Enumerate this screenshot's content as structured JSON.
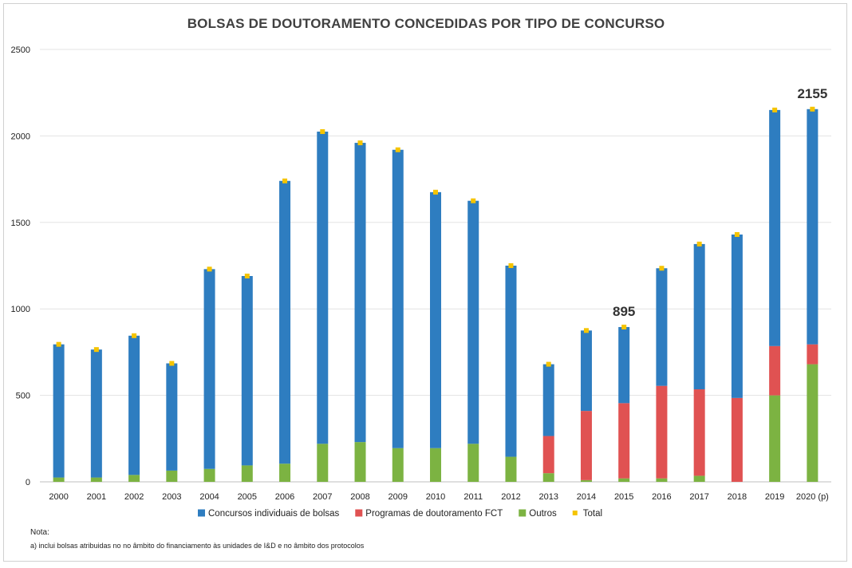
{
  "chart_data": {
    "type": "bar",
    "stacked": true,
    "title": "BOLSAS DE DOUTORAMENTO CONCEDIDAS POR TIPO DE CONCURSO",
    "xlabel": "",
    "ylabel": "",
    "ylim": [
      0,
      2500
    ],
    "yticks": [
      0,
      500,
      1000,
      1500,
      2000,
      2500
    ],
    "grid": true,
    "legend_position": "bottom",
    "categories": [
      "2000",
      "2001",
      "2002",
      "2003",
      "2004",
      "2005",
      "2006",
      "2007",
      "2008",
      "2009",
      "2010",
      "2011",
      "2012",
      "2013",
      "2014",
      "2015",
      "2016",
      "2017",
      "2018",
      "2019",
      "2020 (p)"
    ],
    "series": [
      {
        "name": "Outros",
        "color": "#7cb342",
        "values": [
          25,
          25,
          40,
          65,
          75,
          95,
          105,
          220,
          230,
          195,
          195,
          220,
          145,
          50,
          10,
          20,
          20,
          35,
          0,
          500,
          680
        ]
      },
      {
        "name": "Programas de doutoramento FCT",
        "color": "#e05252",
        "values": [
          0,
          0,
          0,
          0,
          0,
          0,
          0,
          0,
          0,
          0,
          0,
          0,
          0,
          215,
          400,
          435,
          535,
          500,
          485,
          285,
          115
        ]
      },
      {
        "name": "Concursos individuais de bolsas",
        "color": "#2e7dc0",
        "values": [
          770,
          740,
          805,
          620,
          1155,
          1095,
          1635,
          1805,
          1730,
          1725,
          1480,
          1405,
          1105,
          415,
          465,
          440,
          680,
          840,
          945,
          1365,
          1360
        ]
      }
    ],
    "totals": [
      795,
      765,
      845,
      685,
      1230,
      1190,
      1740,
      2025,
      1960,
      1920,
      1675,
      1625,
      1250,
      680,
      875,
      895,
      1235,
      1375,
      1430,
      2150,
      2155
    ],
    "total_series": {
      "name": "Total",
      "color": "#f5c400"
    },
    "legend_order": [
      "Concursos individuais de bolsas",
      "Programas de doutoramento FCT",
      "Outros",
      "Total"
    ],
    "annotations": [
      {
        "category": "2015",
        "text": "895"
      },
      {
        "category": "2020 (p)",
        "text": "2155"
      }
    ]
  },
  "note": {
    "heading": "Nota:",
    "text": "a) inclui bolsas atribuidas no no âmbito do financiamento às unidades de I&D e no âmbito dos protocolos"
  }
}
